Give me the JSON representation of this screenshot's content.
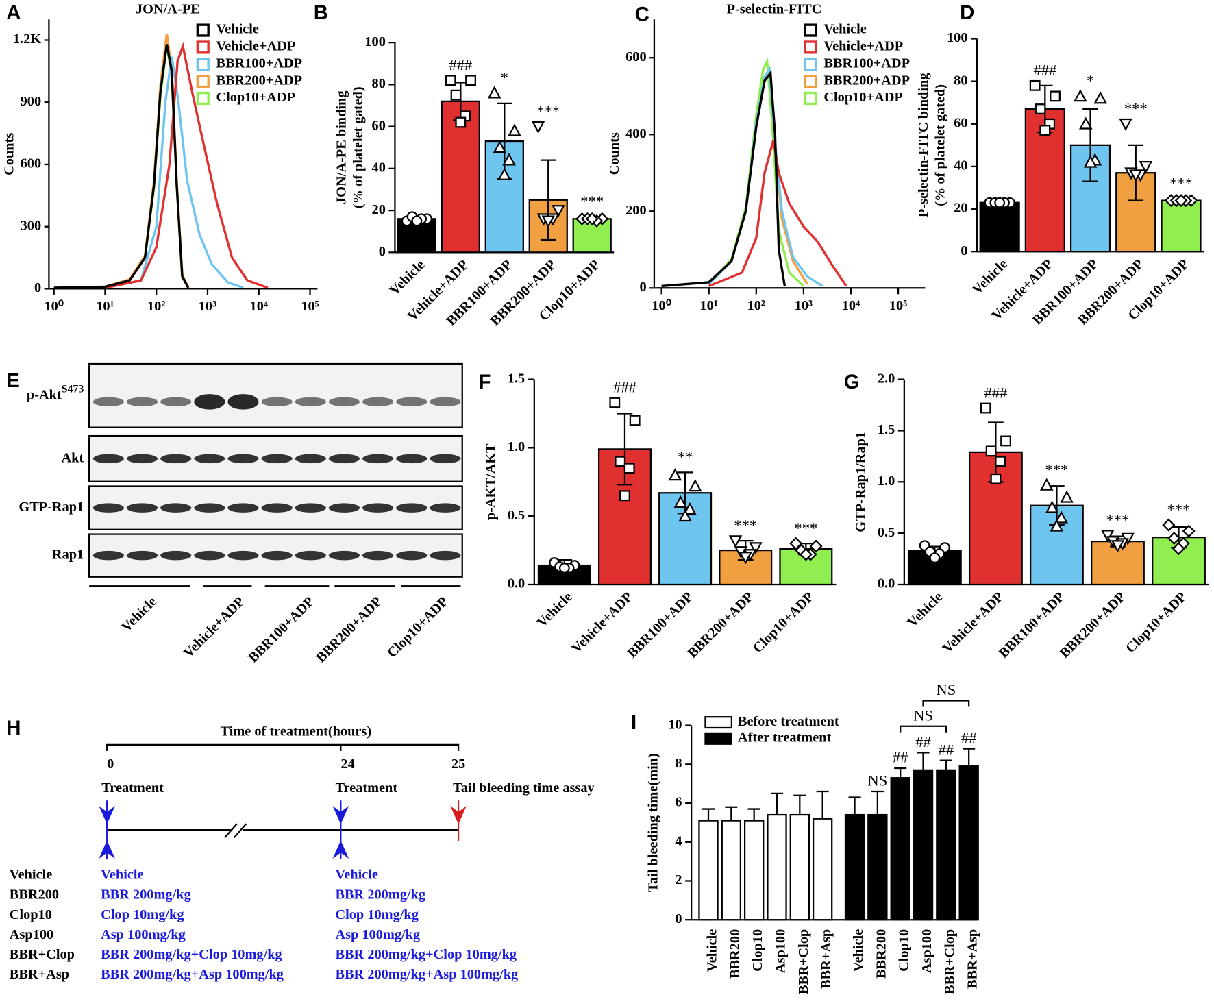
{
  "chart_data": [
    {
      "type": "line",
      "panel": "A",
      "title": "JON/A-PE",
      "ylabel": "Counts",
      "xscale": "log",
      "legend": "upper right",
      "xlim": [
        0.8,
        140000
      ],
      "xticks": [
        {
          "value": 1,
          "label": "10⁰"
        },
        {
          "value": 10,
          "label": "10¹"
        },
        {
          "value": 100,
          "label": "10²"
        },
        {
          "value": 1000,
          "label": "10³"
        },
        {
          "value": 10000,
          "label": "10⁴"
        },
        {
          "value": 100000,
          "label": "10⁵"
        }
      ],
      "ylim": [
        0,
        1300
      ],
      "yticks": [
        0,
        300,
        600,
        900,
        {
          "value": 1200,
          "label": "1.2K"
        }
      ],
      "series": [
        {
          "name": "Vehicle",
          "color": "#000000",
          "x": [
            1,
            10,
            30,
            60,
            90,
            120,
            160,
            200,
            250,
            320,
            420
          ],
          "values": [
            5,
            10,
            40,
            150,
            500,
            950,
            1180,
            1050,
            500,
            60,
            5
          ]
        },
        {
          "name": "Vehicle+ADP",
          "color": "#e03030",
          "x": [
            10,
            50,
            100,
            180,
            260,
            330,
            500,
            800,
            1500,
            3000,
            6000,
            15000
          ],
          "values": [
            5,
            40,
            200,
            600,
            1100,
            1170,
            950,
            720,
            420,
            150,
            40,
            5
          ]
        },
        {
          "name": "BBR100+ADP",
          "color": "#6ec6f0",
          "x": [
            10,
            50,
            100,
            150,
            200,
            270,
            400,
            700,
            1200,
            2500,
            5000
          ],
          "values": [
            5,
            40,
            300,
            900,
            1120,
            900,
            520,
            260,
            120,
            30,
            5
          ]
        },
        {
          "name": "BBR200+ADP",
          "color": "#f0a040",
          "x": [
            10,
            30,
            60,
            90,
            120,
            160,
            200,
            250,
            320,
            420
          ],
          "values": [
            10,
            45,
            160,
            520,
            980,
            1230,
            1060,
            520,
            70,
            5
          ]
        },
        {
          "name": "Clop10+ADP",
          "color": "#90ee50",
          "x": [
            10,
            30,
            60,
            90,
            120,
            160,
            200,
            250,
            320,
            420
          ],
          "values": [
            10,
            40,
            150,
            490,
            930,
            1170,
            1030,
            500,
            60,
            5
          ]
        }
      ]
    },
    {
      "type": "bar",
      "panel": "B",
      "ylabel": [
        "JON/A-PE binding",
        "(% of platelet gated)"
      ],
      "categories": [
        "Vehicle",
        "Vehicle+ADP",
        "BBR100+ADP",
        "BBR200+ADP",
        "Clop10+ADP"
      ],
      "colors": [
        "#000000",
        "#e03030",
        "#6ec6f0",
        "#f0a040",
        "#90ee50"
      ],
      "point_markers": [
        "circle",
        "square",
        "triangle-up",
        "triangle-down",
        "diamond"
      ],
      "values": [
        16,
        72,
        53,
        25,
        16
      ],
      "errors": [
        1,
        9,
        18,
        19,
        1
      ],
      "points": [
        [
          15,
          16,
          17,
          16,
          15
        ],
        [
          82,
          82,
          75,
          65,
          62
        ],
        [
          76,
          58,
          50,
          44,
          37
        ],
        [
          60,
          20,
          16,
          16,
          15
        ],
        [
          16,
          16,
          16,
          15,
          16
        ]
      ],
      "annotations": [
        null,
        "###",
        "*",
        "***",
        "***"
      ],
      "ylim": [
        0,
        100
      ],
      "yticks": [
        0,
        20,
        40,
        60,
        80,
        100
      ]
    },
    {
      "type": "line",
      "panel": "C",
      "title": "P-selectin-FITC",
      "ylabel": "Counts",
      "xscale": "log",
      "legend": "upper right",
      "xlim": [
        0.7,
        370000
      ],
      "xticks": [
        {
          "value": 1,
          "label": "10⁰"
        },
        {
          "value": 10,
          "label": "10¹"
        },
        {
          "value": 100,
          "label": "10²"
        },
        {
          "value": 1000,
          "label": "10³"
        },
        {
          "value": 10000,
          "label": "10⁴"
        },
        {
          "value": 100000,
          "label": "10⁵"
        }
      ],
      "ylim": [
        0,
        700
      ],
      "yticks": [
        0,
        200,
        400,
        600
      ],
      "series": [
        {
          "name": "Vehicle",
          "color": "#000000",
          "x": [
            1,
            10,
            30,
            60,
            100,
            150,
            200,
            250,
            300,
            400
          ],
          "values": [
            5,
            15,
            70,
            200,
            420,
            540,
            560,
            400,
            100,
            5
          ]
        },
        {
          "name": "Vehicle+ADP",
          "color": "#e03030",
          "x": [
            10,
            50,
            100,
            150,
            230,
            300,
            500,
            1000,
            2000,
            4000,
            8000
          ],
          "values": [
            5,
            40,
            130,
            300,
            385,
            300,
            220,
            160,
            120,
            60,
            5
          ]
        },
        {
          "name": "BBR100+ADP",
          "color": "#6ec6f0",
          "x": [
            10,
            30,
            60,
            100,
            150,
            190,
            250,
            350,
            600,
            1200,
            2500
          ],
          "values": [
            10,
            70,
            200,
            430,
            550,
            570,
            380,
            200,
            80,
            30,
            5
          ]
        },
        {
          "name": "BBR200+ADP",
          "color": "#f0a040",
          "x": [
            10,
            30,
            60,
            100,
            150,
            200,
            250,
            350,
            600,
            1200
          ],
          "values": [
            10,
            70,
            200,
            430,
            540,
            560,
            360,
            180,
            70,
            10
          ]
        },
        {
          "name": "Clop10+ADP",
          "color": "#90ee50",
          "x": [
            10,
            30,
            60,
            100,
            140,
            170,
            220,
            300,
            500,
            1000
          ],
          "values": [
            10,
            75,
            210,
            450,
            570,
            590,
            420,
            150,
            40,
            5
          ]
        }
      ]
    },
    {
      "type": "bar",
      "panel": "D",
      "ylabel": [
        "P-selectin-FITC binding",
        "(% of platelet gated)"
      ],
      "categories": [
        "Vehicle",
        "Vehicle+ADP",
        "BBR100+ADP",
        "BBR200+ADP",
        "Clop10+ADP"
      ],
      "colors": [
        "#000000",
        "#e03030",
        "#6ec6f0",
        "#f0a040",
        "#90ee50"
      ],
      "point_markers": [
        "circle",
        "square",
        "triangle-up",
        "triangle-down",
        "diamond"
      ],
      "values": [
        23,
        67,
        50,
        37,
        24
      ],
      "errors": [
        1,
        11,
        17,
        13,
        1
      ],
      "points": [
        [
          23,
          23,
          23,
          23,
          23
        ],
        [
          78,
          73,
          67,
          60,
          57
        ],
        [
          73,
          72,
          60,
          43,
          42
        ],
        [
          60,
          40,
          37,
          36,
          36
        ],
        [
          24,
          24,
          24,
          24,
          24
        ]
      ],
      "annotations": [
        null,
        "###",
        "*",
        "***",
        "***"
      ],
      "ylim": [
        0,
        100
      ],
      "yticks": [
        0,
        20,
        40,
        60,
        80,
        100
      ]
    },
    {
      "type": "bar",
      "panel": "F",
      "ylabel": [
        "p-AKT/AKT"
      ],
      "categories": [
        "Vehicle",
        "Vehicle+ADP",
        "BBR100+ADP",
        "BBR200+ADP",
        "Clop10+ADP"
      ],
      "colors": [
        "#000000",
        "#e03030",
        "#6ec6f0",
        "#f0a040",
        "#90ee50"
      ],
      "point_markers": [
        "circle",
        "square",
        "triangle-up",
        "triangle-down",
        "diamond"
      ],
      "values": [
        0.14,
        0.99,
        0.67,
        0.25,
        0.26
      ],
      "errors": [
        0.04,
        0.26,
        0.15,
        0.07,
        0.04
      ],
      "points": [
        [
          0.16,
          0.14,
          0.13,
          0.12,
          0.12
        ],
        [
          1.33,
          1.2,
          0.9,
          0.85,
          0.65
        ],
        [
          0.8,
          0.72,
          0.6,
          0.55,
          0.5
        ],
        [
          0.32,
          0.27,
          0.24,
          0.22,
          0.2
        ],
        [
          0.3,
          0.28,
          0.25,
          0.22,
          0.22
        ]
      ],
      "annotations": [
        null,
        "###",
        "**",
        "***",
        "***"
      ],
      "ylim": [
        0,
        1.5
      ],
      "yticks": [
        {
          "value": 0,
          "label": "0.0"
        },
        0.5,
        {
          "value": 1,
          "label": "1.0"
        },
        1.5
      ]
    },
    {
      "type": "bar",
      "panel": "G",
      "ylabel": [
        "GTP-Rap1/Rap1"
      ],
      "categories": [
        "Vehicle",
        "Vehicle+ADP",
        "BBR100+ADP",
        "BBR200+ADP",
        "Clop10+ADP"
      ],
      "colors": [
        "#000000",
        "#e03030",
        "#6ec6f0",
        "#f0a040",
        "#90ee50"
      ],
      "point_markers": [
        "circle",
        "square",
        "triangle-up",
        "triangle-down",
        "diamond"
      ],
      "values": [
        0.33,
        1.29,
        0.77,
        0.42,
        0.46
      ],
      "errors": [
        0.04,
        0.29,
        0.19,
        0.05,
        0.1
      ],
      "points": [
        [
          0.38,
          0.36,
          0.32,
          0.3,
          0.26
        ],
        [
          1.72,
          1.4,
          1.3,
          1.2,
          1.03
        ],
        [
          0.97,
          0.85,
          0.75,
          0.65,
          0.57
        ],
        [
          0.48,
          0.45,
          0.42,
          0.4,
          0.38
        ],
        [
          0.58,
          0.52,
          0.45,
          0.4,
          0.35
        ]
      ],
      "annotations": [
        null,
        "###",
        "***",
        "***",
        "***"
      ],
      "ylim": [
        0,
        2
      ],
      "yticks": [
        {
          "value": 0,
          "label": "0.0"
        },
        0.5,
        {
          "value": 1,
          "label": "1.0"
        },
        1.5,
        {
          "value": 2,
          "label": "2.0"
        }
      ]
    },
    {
      "type": "grouped_bar",
      "panel": "I",
      "ylabel": "Tail bleeding time(min)",
      "categories": [
        "Vehicle",
        "BBR200",
        "Clop10",
        "Asp100",
        "BBR+Clop",
        "BBR+Asp"
      ],
      "series": [
        {
          "name": "Before treatment",
          "color": "#ffffff",
          "values": [
            5.1,
            5.1,
            5.1,
            5.4,
            5.4,
            5.2
          ],
          "errors": [
            0.6,
            0.7,
            0.6,
            1.1,
            1.0,
            1.4
          ]
        },
        {
          "name": "After treatment",
          "color": "#000000",
          "values": [
            5.4,
            5.4,
            7.3,
            7.7,
            7.7,
            7.9
          ],
          "errors": [
            0.9,
            1.2,
            0.5,
            0.9,
            0.5,
            0.9
          ],
          "annotations": [
            null,
            "NS",
            "##",
            "##",
            "##",
            "##"
          ]
        }
      ],
      "brackets": [
        {
          "label": "NS",
          "between": [
            "Clop10",
            "BBR+Clop"
          ]
        },
        {
          "label": "NS",
          "between": [
            "Asp100",
            "BBR+Asp"
          ]
        }
      ],
      "ylim": [
        0,
        10
      ],
      "yticks": [
        0,
        2,
        4,
        6,
        8,
        10
      ]
    }
  ],
  "blot": {
    "panel": "E",
    "rows": [
      {
        "label": "p-Akt",
        "sup": "S473"
      },
      {
        "label": "Akt"
      },
      {
        "label": "GTP-Rap1"
      },
      {
        "label": "Rap1"
      }
    ],
    "groups": [
      "Vehicle",
      "Vehicle+ADP",
      "BBR100+ADP",
      "BBR200+ADP",
      "Clop10+ADP"
    ]
  },
  "timeline": {
    "panel": "H",
    "title": "Time of treatment(hours)",
    "times": [
      "0",
      "24",
      "25"
    ],
    "events": [
      "Treatment",
      "Treatment",
      "Tail bleeding time assay"
    ],
    "groups": [
      {
        "name": "Vehicle",
        "first": "Vehicle",
        "second": "Vehicle"
      },
      {
        "name": "BBR200",
        "first": "BBR 200mg/kg",
        "second": "BBR 200mg/kg"
      },
      {
        "name": "Clop10",
        "first": "Clop 10mg/kg",
        "second": "Clop 10mg/kg"
      },
      {
        "name": "Asp100",
        "first": "Asp 100mg/kg",
        "second": "Asp 100mg/kg"
      },
      {
        "name": "BBR+Clop",
        "first": "BBR 200mg/kg+Clop 10mg/kg",
        "second": "BBR 200mg/kg+Clop 10mg/kg"
      },
      {
        "name": "BBR+Asp",
        "first": "BBR 200mg/kg+Asp 100mg/kg",
        "second": "BBR 200mg/kg+Asp 100mg/kg"
      }
    ]
  }
}
